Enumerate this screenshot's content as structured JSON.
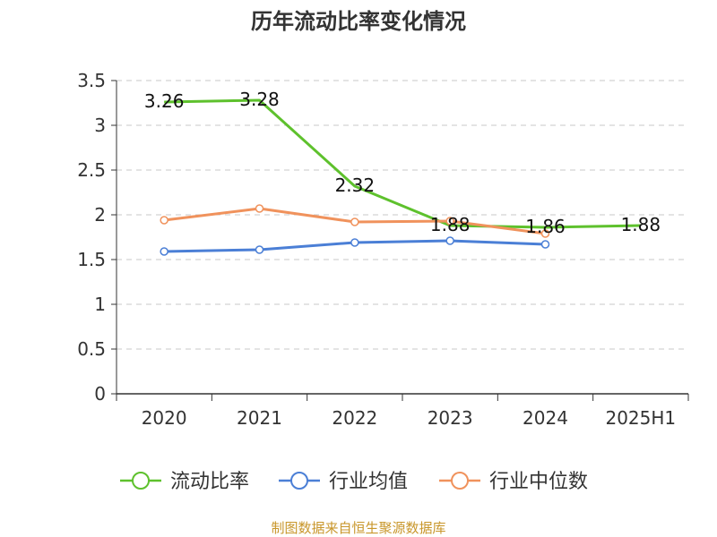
{
  "chart_data": {
    "type": "line",
    "title": "历年流动比率变化情况",
    "categories": [
      "2020",
      "2021",
      "2022",
      "2023",
      "2024",
      "2025H1"
    ],
    "ylim": [
      0,
      3.5
    ],
    "yticks": [
      "0",
      "0.5",
      "1",
      "1.5",
      "2",
      "2.5",
      "3",
      "3.5"
    ],
    "grid": true,
    "legend_position": "bottom",
    "series": [
      {
        "name": "流动比率",
        "color": "#5ec12d",
        "values": [
          3.26,
          3.28,
          2.32,
          1.88,
          1.86,
          1.88
        ],
        "labels": [
          "3.26",
          "3.28",
          "2.32",
          "1.88",
          "1.86",
          "1.88"
        ],
        "show_markers": false
      },
      {
        "name": "行业均值",
        "color": "#4b7fd6",
        "values": [
          1.59,
          1.61,
          1.69,
          1.71,
          1.67,
          null
        ],
        "show_markers": true
      },
      {
        "name": "行业中位数",
        "color": "#f0925c",
        "values": [
          1.94,
          2.07,
          1.92,
          1.93,
          1.79,
          null
        ],
        "show_markers": true
      }
    ]
  },
  "source": "制图数据来自恒生聚源数据库"
}
